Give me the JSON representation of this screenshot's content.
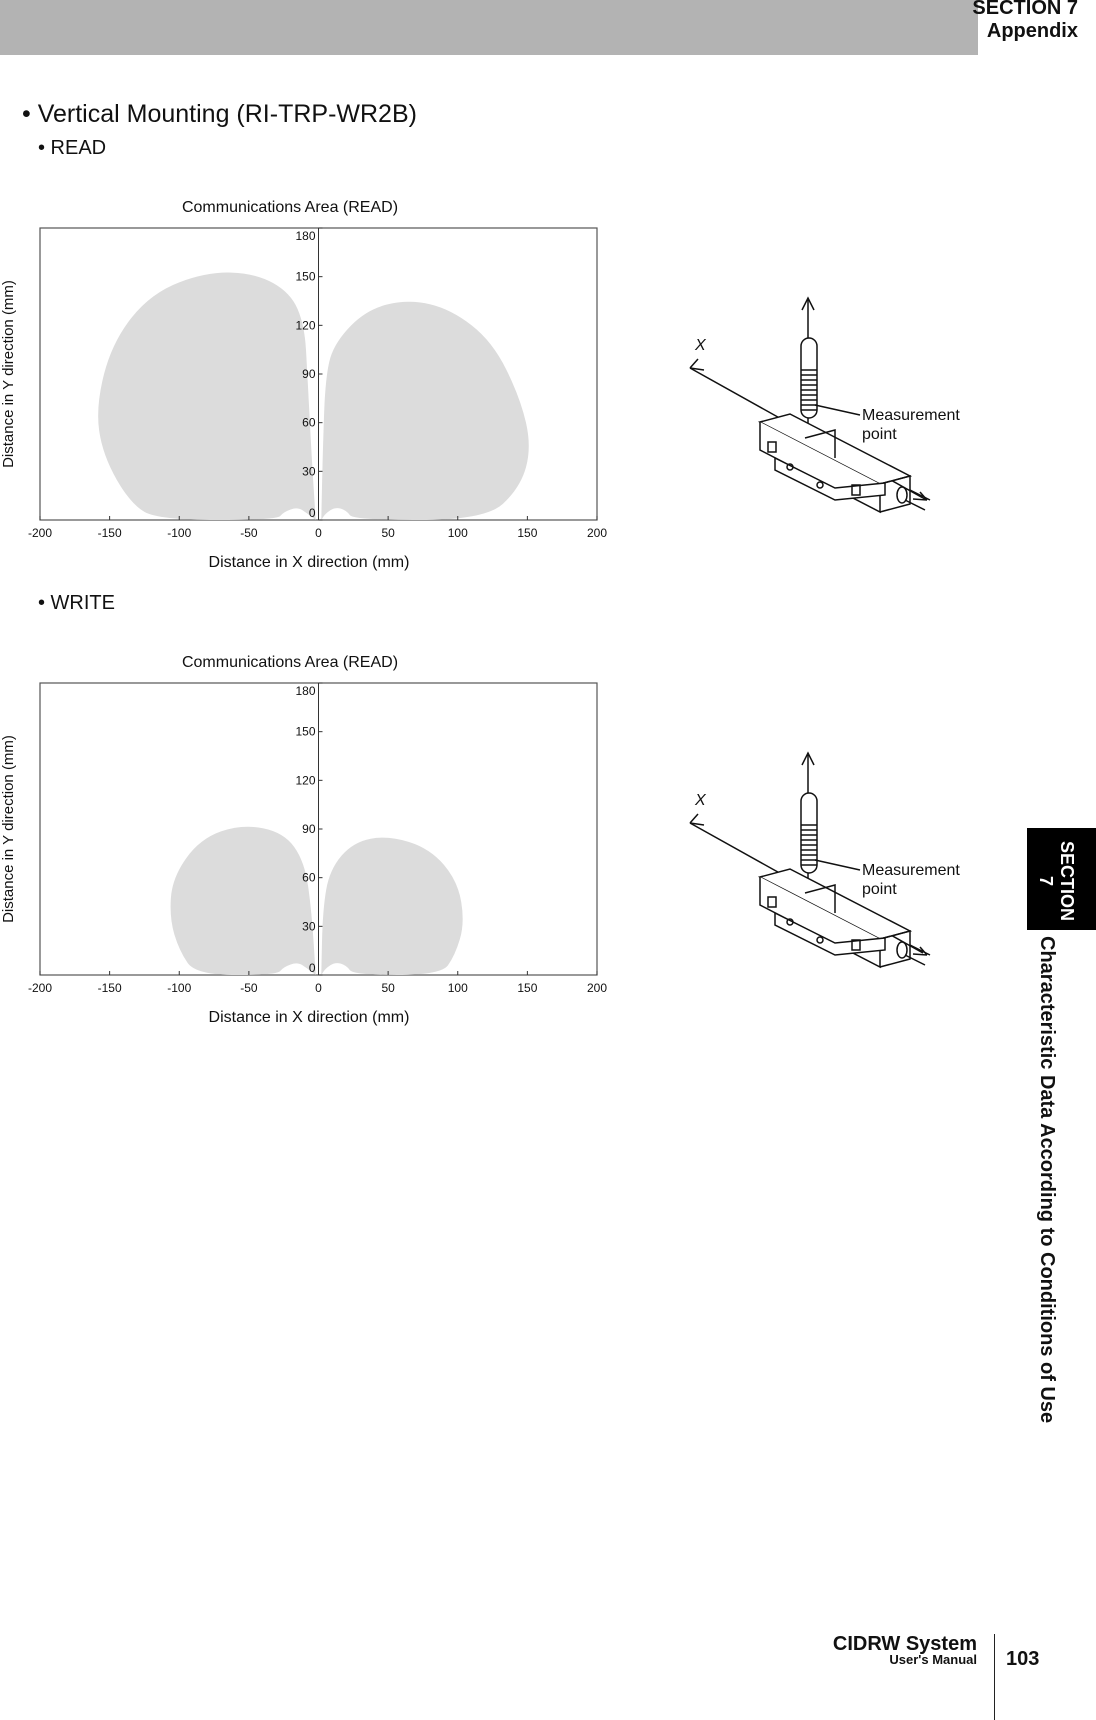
{
  "header": {
    "section": "SECTION 7",
    "chapter": "Appendix"
  },
  "heading": "• Vertical Mounting (RI-TRP-WR2B)",
  "sections": [
    {
      "label": "• READ"
    },
    {
      "label": "• WRITE"
    }
  ],
  "chart_data": [
    {
      "type": "area",
      "title": "Communications Area (READ)",
      "xlabel": "Distance in X direction (mm)",
      "ylabel": "Distance in Y direction (mm)",
      "xlim": [
        -200,
        200
      ],
      "ylim": [
        0,
        180
      ],
      "x_ticks": [
        "-200",
        "-150",
        "-100",
        "-50",
        "0",
        "50",
        "100",
        "150",
        "200"
      ],
      "y_ticks": [
        "0",
        "30",
        "60",
        "90",
        "120",
        "150",
        "180"
      ],
      "grid": false,
      "series": [
        {
          "values": [
            [
              -2,
              0
            ],
            [
              -5,
              40
            ],
            [
              -8,
              90
            ],
            [
              -10,
              120
            ],
            [
              -20,
              140
            ],
            [
              -45,
              152
            ],
            [
              -80,
              153
            ],
            [
              -120,
              140
            ],
            [
              -148,
              110
            ],
            [
              -160,
              70
            ],
            [
              -155,
              40
            ],
            [
              -135,
              10
            ],
            [
              -115,
              0
            ],
            [
              -30,
              0
            ],
            [
              -25,
              5
            ],
            [
              -15,
              8
            ],
            [
              -8,
              4
            ],
            [
              -2,
              0
            ]
          ]
        },
        {
          "values": [
            [
              2,
              0
            ],
            [
              3,
              40
            ],
            [
              5,
              90
            ],
            [
              12,
              110
            ],
            [
              35,
              130
            ],
            [
              65,
              136
            ],
            [
              95,
              130
            ],
            [
              125,
              110
            ],
            [
              145,
              75
            ],
            [
              153,
              45
            ],
            [
              145,
              20
            ],
            [
              120,
              0
            ],
            [
              25,
              0
            ],
            [
              20,
              6
            ],
            [
              12,
              8
            ],
            [
              5,
              4
            ],
            [
              2,
              0
            ]
          ]
        }
      ],
      "fill_color": "#dcdcdc"
    },
    {
      "type": "area",
      "title": "Communications Area (READ)",
      "xlabel": "Distance in X direction (mm)",
      "ylabel": "Distance in Y direction (mm)",
      "xlim": [
        -200,
        200
      ],
      "ylim": [
        0,
        180
      ],
      "x_ticks": [
        "-200",
        "-150",
        "-100",
        "-50",
        "0",
        "50",
        "100",
        "150",
        "200"
      ],
      "y_ticks": [
        "0",
        "30",
        "60",
        "90",
        "120",
        "150",
        "180"
      ],
      "grid": false,
      "series": [
        {
          "values": [
            [
              -2,
              0
            ],
            [
              -5,
              40
            ],
            [
              -10,
              70
            ],
            [
              -25,
              88
            ],
            [
              -55,
              93
            ],
            [
              -85,
              84
            ],
            [
              -105,
              60
            ],
            [
              -107,
              35
            ],
            [
              -100,
              15
            ],
            [
              -88,
              0
            ],
            [
              -30,
              0
            ],
            [
              -25,
              5
            ],
            [
              -15,
              8
            ],
            [
              -8,
              4
            ],
            [
              -2,
              0
            ]
          ]
        },
        {
          "values": [
            [
              2,
              0
            ],
            [
              3,
              40
            ],
            [
              8,
              65
            ],
            [
              25,
              82
            ],
            [
              50,
              86
            ],
            [
              80,
              78
            ],
            [
              100,
              58
            ],
            [
              105,
              32
            ],
            [
              98,
              12
            ],
            [
              88,
              0
            ],
            [
              25,
              0
            ],
            [
              20,
              6
            ],
            [
              12,
              8
            ],
            [
              5,
              4
            ],
            [
              2,
              0
            ]
          ]
        }
      ],
      "fill_color": "#dcdcdc"
    }
  ],
  "figure": {
    "axis_label": "X",
    "callout": [
      "Measurement",
      "point"
    ]
  },
  "side_tab": {
    "label": "SECTION 7",
    "title": "Characteristic Data According to Conditions of Use"
  },
  "footer": {
    "system": "CIDRW System",
    "manual": "User's Manual",
    "page": "103"
  }
}
